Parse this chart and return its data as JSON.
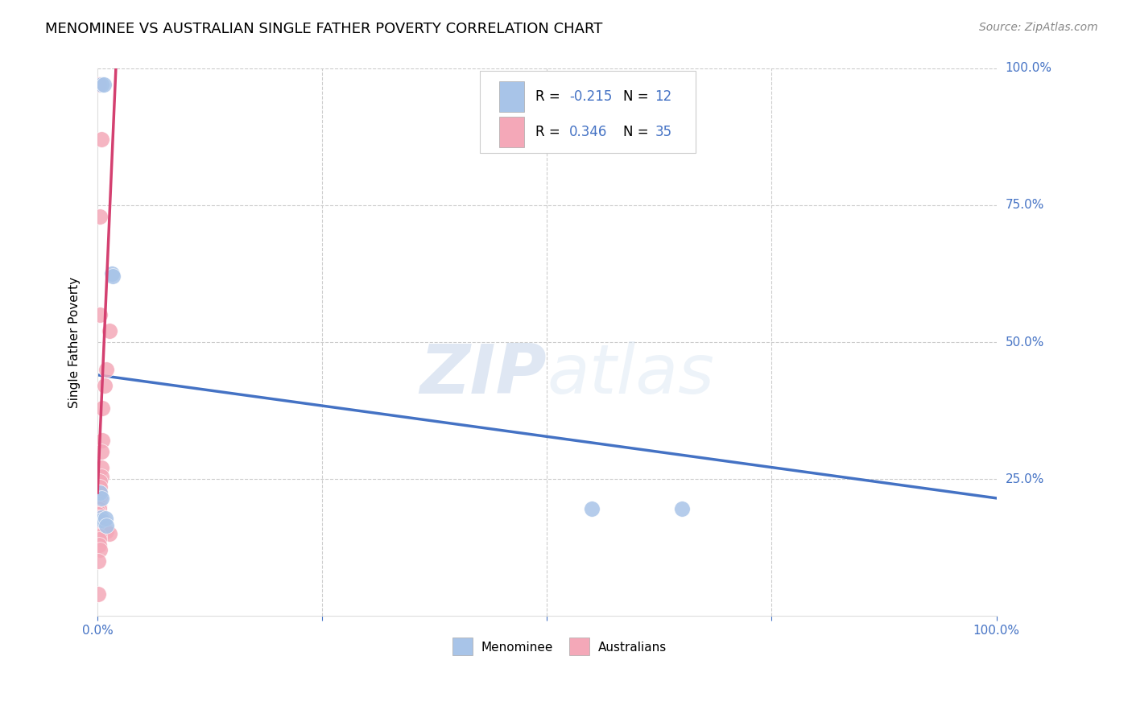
{
  "title": "MENOMINEE VS AUSTRALIAN SINGLE FATHER POVERTY CORRELATION CHART",
  "source": "Source: ZipAtlas.com",
  "ylabel": "Single Father Poverty",
  "watermark": "ZIPatlas",
  "menominee_color": "#a8c4e8",
  "australians_color": "#f4a8b8",
  "menominee_R": -0.215,
  "menominee_N": 12,
  "australians_R": 0.346,
  "australians_N": 35,
  "menominee_line_color": "#4472c4",
  "australians_line_color": "#d44070",
  "menominee_points_x": [
    0.004,
    0.007,
    0.55,
    0.65,
    0.016,
    0.017,
    0.003,
    0.004,
    0.004,
    0.004,
    0.009,
    0.01
  ],
  "menominee_points_y": [
    0.97,
    0.97,
    0.195,
    0.195,
    0.625,
    0.62,
    0.225,
    0.215,
    0.18,
    0.175,
    0.178,
    0.165
  ],
  "australians_points_x": [
    0.002,
    0.004,
    0.003,
    0.003,
    0.013,
    0.01,
    0.008,
    0.005,
    0.005,
    0.004,
    0.004,
    0.004,
    0.003,
    0.003,
    0.003,
    0.003,
    0.002,
    0.002,
    0.002,
    0.002,
    0.001,
    0.001,
    0.001,
    0.006,
    0.006,
    0.003,
    0.008,
    0.01,
    0.013,
    0.002,
    0.002,
    0.002,
    0.003,
    0.001,
    0.001
  ],
  "australians_points_y": [
    0.97,
    0.87,
    0.73,
    0.55,
    0.52,
    0.45,
    0.42,
    0.38,
    0.32,
    0.3,
    0.27,
    0.255,
    0.245,
    0.235,
    0.225,
    0.215,
    0.21,
    0.205,
    0.2,
    0.195,
    0.19,
    0.185,
    0.18,
    0.175,
    0.17,
    0.165,
    0.16,
    0.155,
    0.15,
    0.145,
    0.14,
    0.13,
    0.12,
    0.1,
    0.04
  ],
  "grid_color": "#cccccc",
  "background_color": "#ffffff",
  "title_fontsize": 13,
  "axis_label_fontsize": 11,
  "tick_fontsize": 11,
  "legend_fontsize": 12,
  "source_fontsize": 10,
  "blue_text_color": "#4472c4"
}
